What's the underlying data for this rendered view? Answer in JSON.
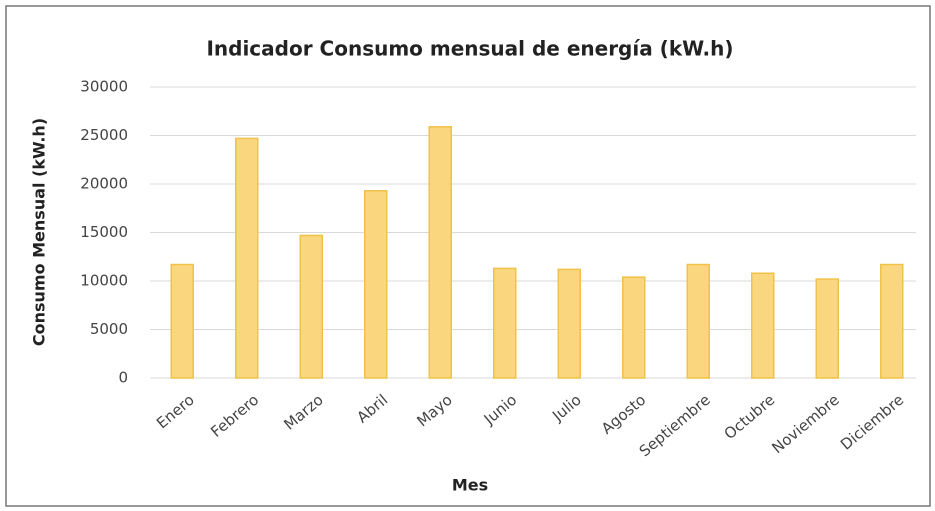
{
  "chart_data": {
    "type": "bar",
    "title": "Indicador Consumo mensual de energía (kW.h)",
    "x_label": "Mes",
    "y_label": "Consumo Mensual (kW.h)",
    "categories": [
      "Enero",
      "Febrero",
      "Marzo",
      "Abril",
      "Mayo",
      "Junio",
      "Julio",
      "Agosto",
      "Septiembre",
      "Octubre",
      "Noviembre",
      "Diciembre"
    ],
    "values": [
      11700,
      24700,
      14700,
      19300,
      25900,
      11300,
      11200,
      10400,
      11700,
      10800,
      10200,
      11700
    ],
    "color": "#fad77e",
    "ylim": [
      0,
      30000
    ],
    "yticks": [
      0,
      5000,
      10000,
      15000,
      20000,
      25000,
      30000
    ],
    "grid": true
  }
}
